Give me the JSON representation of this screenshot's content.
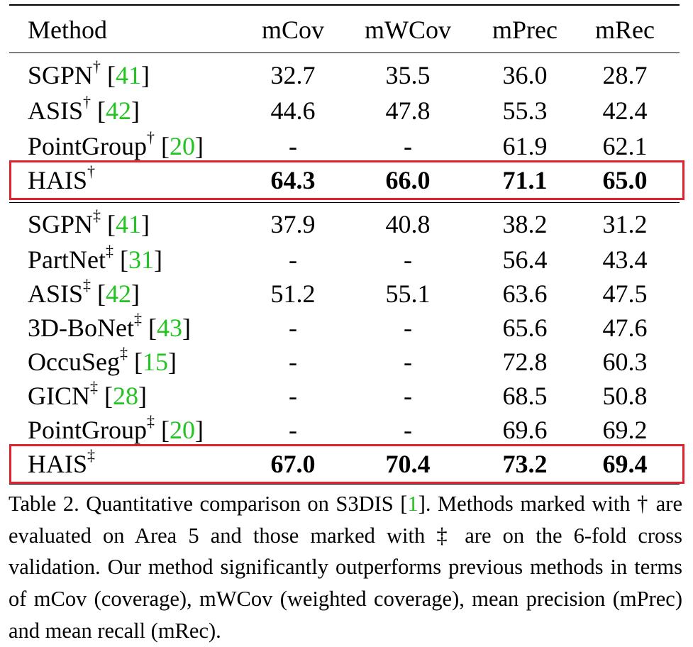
{
  "table": {
    "headers": [
      "Method",
      "mCov",
      "mWCov",
      "mPrec",
      "mRec"
    ],
    "rows": [
      {
        "name": "SGPN",
        "mark": "†",
        "ref": "41",
        "vals": [
          "32.7",
          "35.5",
          "36.0",
          "28.7"
        ],
        "bold": false
      },
      {
        "name": "ASIS",
        "mark": "†",
        "ref": "42",
        "vals": [
          "44.6",
          "47.8",
          "55.3",
          "42.4"
        ],
        "bold": false
      },
      {
        "name": "PointGroup",
        "mark": "†",
        "ref": "20",
        "vals": [
          "-",
          "-",
          "61.9",
          "62.1"
        ],
        "bold": false
      },
      {
        "name": "HAIS",
        "mark": "†",
        "ref": "",
        "vals": [
          "64.3",
          "66.0",
          "71.1",
          "65.0"
        ],
        "bold": true
      },
      {
        "name": "SGPN",
        "mark": "‡",
        "ref": "41",
        "vals": [
          "37.9",
          "40.8",
          "38.2",
          "31.2"
        ],
        "bold": false
      },
      {
        "name": "PartNet",
        "mark": "‡",
        "ref": "31",
        "vals": [
          "-",
          "-",
          "56.4",
          "43.4"
        ],
        "bold": false
      },
      {
        "name": "ASIS",
        "mark": "‡",
        "ref": "42",
        "vals": [
          "51.2",
          "55.1",
          "63.6",
          "47.5"
        ],
        "bold": false
      },
      {
        "name": "3D-BoNet",
        "mark": "‡",
        "ref": "43",
        "vals": [
          "-",
          "-",
          "65.6",
          "47.6"
        ],
        "bold": false
      },
      {
        "name": "OccuSeg",
        "mark": "‡",
        "ref": "15",
        "vals": [
          "-",
          "-",
          "72.8",
          "60.3"
        ],
        "bold": false
      },
      {
        "name": "GICN",
        "mark": "‡",
        "ref": "28",
        "vals": [
          "-",
          "-",
          "68.5",
          "50.8"
        ],
        "bold": false
      },
      {
        "name": "PointGroup",
        "mark": "‡",
        "ref": "20",
        "vals": [
          "-",
          "-",
          "69.6",
          "69.2"
        ],
        "bold": false
      },
      {
        "name": "HAIS",
        "mark": "‡",
        "ref": "",
        "vals": [
          "67.0",
          "70.4",
          "73.2",
          "69.4"
        ],
        "bold": true
      }
    ]
  },
  "caption": {
    "before": "Table 2. Quantitative comparison on S3DIS [",
    "ref": "1",
    "after": "]. Methods marked with † are evaluated on Area 5 and those marked with ‡ are on the 6-fold cross validation. Our method significantly outperforms previous methods in terms of mCov (coverage), mWCov (weighted coverage), mean precision (mPrec) and mean recall (mRec)."
  },
  "colors": {
    "highlight_box": "#e2202e",
    "reference": "#22c322"
  }
}
